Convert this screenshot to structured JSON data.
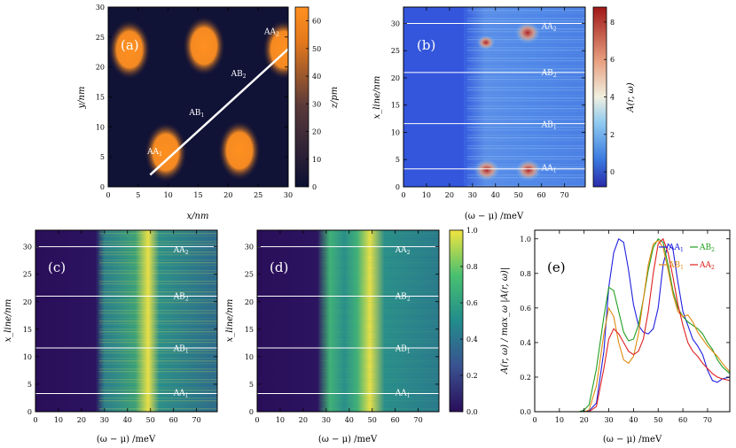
{
  "panels": {
    "a": {
      "label": "(a)",
      "xlabel": "x/nm",
      "ylabel": "y/nm",
      "colorbar_label": "z/pm",
      "xticks": [
        "0",
        "5",
        "10",
        "15",
        "20",
        "25",
        "30"
      ],
      "yticks": [
        "0",
        "5",
        "10",
        "15",
        "20",
        "25",
        "30"
      ],
      "cbticks": [
        "0",
        "10",
        "20",
        "30",
        "40",
        "50",
        "60"
      ],
      "annotations": [
        "AA1",
        "AB1",
        "AB2",
        "AA2"
      ]
    },
    "b": {
      "label": "(b)",
      "xlabel": "(ω − μ) /meV",
      "ylabel": "x_line/nm",
      "colorbar_label": "A(r, ω)",
      "xticks": [
        "0",
        "10",
        "20",
        "30",
        "40",
        "50",
        "60",
        "70"
      ],
      "yticks": [
        "0",
        "5",
        "10",
        "15",
        "20",
        "25",
        "30"
      ],
      "cbticks": [
        "0",
        "2",
        "4",
        "6",
        "8"
      ],
      "annotations": [
        "AA2",
        "AB2",
        "AB1",
        "AA1"
      ]
    },
    "c": {
      "label": "(c)",
      "xlabel": "(ω − μ) /meV",
      "ylabel": "x_line/nm",
      "xticks": [
        "0",
        "10",
        "20",
        "30",
        "40",
        "50",
        "60",
        "70"
      ],
      "yticks": [
        "0",
        "5",
        "10",
        "15",
        "20",
        "25",
        "30"
      ],
      "annotations": [
        "AA2",
        "AB2",
        "AB1",
        "AA1"
      ]
    },
    "d": {
      "label": "(d)",
      "xlabel": "(ω − μ) /meV",
      "ylabel": "x_line/nm",
      "xticks": [
        "0",
        "10",
        "20",
        "30",
        "40",
        "50",
        "60",
        "70"
      ],
      "yticks": [
        "0",
        "5",
        "10",
        "15",
        "20",
        "25",
        "30"
      ],
      "cbticks": [
        "0.0",
        "0.2",
        "0.4",
        "0.6",
        "0.8",
        "1.0"
      ],
      "annotations": [
        "AA2",
        "AB2",
        "AB1",
        "AA1"
      ]
    },
    "e": {
      "label": "(e)",
      "xlabel": "(ω − μ) /meV",
      "ylabel": "A(r, ω) / max_ω |A(r, ω)|",
      "xticks": [
        "0",
        "10",
        "20",
        "30",
        "40",
        "50",
        "60",
        "70"
      ],
      "yticks": [
        "0.0",
        "0.2",
        "0.4",
        "0.6",
        "0.8",
        "1.0"
      ]
    }
  },
  "chart_data": [
    {
      "type": "heatmap",
      "panel": "a",
      "title": "(a)",
      "xlabel": "x/nm",
      "ylabel": "y/nm",
      "xlim": [
        0,
        30
      ],
      "ylim": [
        0,
        30
      ],
      "colorbar": {
        "label": "z/pm",
        "range": [
          0,
          65
        ]
      },
      "line_cut": {
        "from": [
          7,
          2
        ],
        "to": [
          30,
          23
        ],
        "color": "#ffffff"
      },
      "peaks": [
        {
          "x": 3.5,
          "y": 22.5,
          "z": 60
        },
        {
          "x": 16,
          "y": 23,
          "z": 60
        },
        {
          "x": 29,
          "y": 22.5,
          "z": 60
        },
        {
          "x": 9.5,
          "y": 5,
          "z": 60
        },
        {
          "x": 22,
          "y": 5.5,
          "z": 60
        }
      ],
      "annotations": [
        {
          "text": "AA1",
          "x": 9,
          "y": 5.5
        },
        {
          "text": "AB1",
          "x": 16,
          "y": 12
        },
        {
          "text": "AB2",
          "x": 23,
          "y": 18.5
        },
        {
          "text": "AA2",
          "x": 28.5,
          "y": 25.5
        }
      ]
    },
    {
      "type": "heatmap",
      "panel": "b",
      "title": "(b)",
      "xlabel": "(ω − μ) /meV",
      "ylabel": "x_line/nm",
      "xlim": [
        0,
        79
      ],
      "ylim": [
        0,
        33
      ],
      "colorbar": {
        "label": "A(r, ω)",
        "range": [
          -0.8,
          8.8
        ]
      },
      "reference_lines_y": [
        3.3,
        11.6,
        21,
        30
      ],
      "hotspots": [
        {
          "x": 36,
          "y": 3,
          "value": 6
        },
        {
          "x": 54,
          "y": 3,
          "value": 6
        },
        {
          "x": 36,
          "y": 26,
          "value": 4
        },
        {
          "x": 54,
          "y": 28,
          "value": 7
        }
      ],
      "annotations": [
        {
          "text": "AA2",
          "x": 60,
          "y": 29
        },
        {
          "text": "AB2",
          "x": 60,
          "y": 20.5
        },
        {
          "text": "AB1",
          "x": 60,
          "y": 11
        },
        {
          "text": "AA1",
          "x": 60,
          "y": 3
        }
      ]
    },
    {
      "type": "heatmap",
      "panel": "c",
      "title": "(c)",
      "xlabel": "(ω − μ) /meV",
      "ylabel": "x_line/nm",
      "xlim": [
        0,
        79
      ],
      "ylim": [
        0,
        33
      ],
      "reference_lines_y": [
        3.3,
        11.6,
        21,
        30
      ],
      "annotations": [
        {
          "text": "AA2",
          "x": 60,
          "y": 29
        },
        {
          "text": "AB2",
          "x": 60,
          "y": 20.5
        },
        {
          "text": "AB1",
          "x": 60,
          "y": 11
        },
        {
          "text": "AA1",
          "x": 60,
          "y": 3
        }
      ]
    },
    {
      "type": "heatmap",
      "panel": "d",
      "title": "(d)",
      "xlabel": "(ω − μ) /meV",
      "ylabel": "x_line/nm",
      "xlim": [
        0,
        79
      ],
      "ylim": [
        0,
        33
      ],
      "colorbar": {
        "range": [
          0,
          1
        ]
      },
      "reference_lines_y": [
        3.3,
        11.6,
        21,
        30
      ],
      "annotations": [
        {
          "text": "AA2",
          "x": 60,
          "y": 29
        },
        {
          "text": "AB2",
          "x": 60,
          "y": 20.5
        },
        {
          "text": "AB1",
          "x": 60,
          "y": 11
        },
        {
          "text": "AA1",
          "x": 60,
          "y": 3
        }
      ]
    },
    {
      "type": "line",
      "panel": "e",
      "title": "(e)",
      "xlabel": "(ω − μ) /meV",
      "ylabel": "A(r, ω) / max_ω |A(r, ω)|",
      "xlim": [
        0,
        79
      ],
      "ylim": [
        0,
        1.05
      ],
      "legend": "top-right",
      "series": [
        {
          "name": "AA1",
          "color": "#2020e0",
          "x": [
            0,
            18,
            22,
            25,
            28,
            30,
            32,
            34,
            36,
            38,
            40,
            42,
            44,
            46,
            48,
            50,
            52,
            54,
            56,
            58,
            60,
            62,
            64,
            66,
            68,
            70,
            72,
            74,
            76,
            79
          ],
          "y": [
            0,
            0,
            0.005,
            0.05,
            0.35,
            0.72,
            0.92,
            1.0,
            0.98,
            0.82,
            0.62,
            0.5,
            0.46,
            0.45,
            0.48,
            0.6,
            0.85,
            0.97,
            0.94,
            0.75,
            0.58,
            0.5,
            0.42,
            0.38,
            0.33,
            0.24,
            0.18,
            0.17,
            0.19,
            0.2
          ]
        },
        {
          "name": "AB2",
          "color": "#20a020",
          "x": [
            0,
            18,
            20,
            22,
            25,
            28,
            30,
            32,
            34,
            36,
            38,
            40,
            42,
            44,
            46,
            48,
            50,
            52,
            54,
            56,
            58,
            60,
            62,
            64,
            66,
            68,
            70,
            72,
            74,
            76,
            79
          ],
          "y": [
            0,
            0,
            0.01,
            0.04,
            0.25,
            0.55,
            0.72,
            0.7,
            0.58,
            0.46,
            0.41,
            0.42,
            0.5,
            0.65,
            0.82,
            0.95,
            1.0,
            0.98,
            0.85,
            0.7,
            0.6,
            0.55,
            0.52,
            0.5,
            0.48,
            0.45,
            0.4,
            0.36,
            0.3,
            0.26,
            0.22
          ]
        },
        {
          "name": "AB1",
          "color": "#e08a10",
          "x": [
            0,
            20,
            22,
            25,
            28,
            30,
            32,
            34,
            36,
            38,
            40,
            42,
            44,
            46,
            48,
            50,
            52,
            54,
            56,
            58,
            60,
            62,
            64,
            66,
            68,
            70,
            72,
            74,
            76,
            79
          ],
          "y": [
            0,
            0,
            0.01,
            0.15,
            0.45,
            0.6,
            0.55,
            0.4,
            0.3,
            0.28,
            0.32,
            0.45,
            0.65,
            0.85,
            0.97,
            0.99,
            0.95,
            0.82,
            0.68,
            0.58,
            0.55,
            0.56,
            0.52,
            0.46,
            0.42,
            0.38,
            0.35,
            0.32,
            0.28,
            0.23
          ]
        },
        {
          "name": "AA2",
          "color": "#e02020",
          "x": [
            0,
            22,
            25,
            28,
            30,
            32,
            34,
            36,
            38,
            40,
            42,
            44,
            46,
            48,
            50,
            52,
            54,
            56,
            58,
            60,
            62,
            64,
            66,
            68,
            70,
            72,
            74,
            76,
            79
          ],
          "y": [
            0,
            0,
            0.03,
            0.25,
            0.42,
            0.48,
            0.45,
            0.4,
            0.35,
            0.33,
            0.35,
            0.42,
            0.58,
            0.8,
            0.97,
            1.0,
            0.92,
            0.78,
            0.62,
            0.5,
            0.4,
            0.35,
            0.32,
            0.28,
            0.25,
            0.22,
            0.2,
            0.19,
            0.18
          ]
        }
      ]
    }
  ]
}
